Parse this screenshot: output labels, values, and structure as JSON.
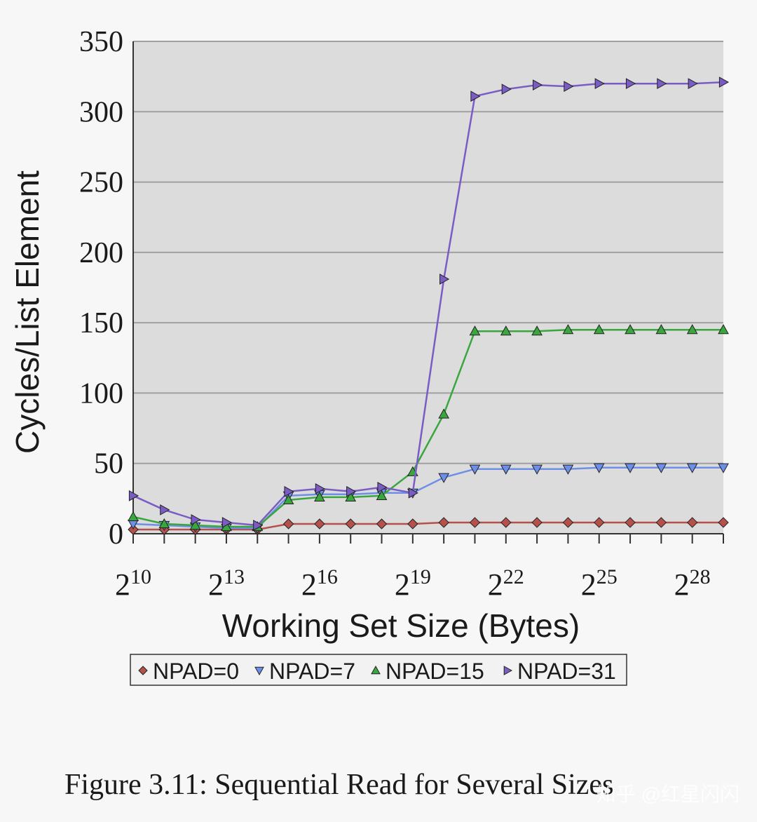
{
  "chart_data": {
    "type": "line",
    "xlabel": "Working Set Size (Bytes)",
    "ylabel": "Cycles/List Element",
    "ylim": [
      0,
      350
    ],
    "yticks": [
      0,
      50,
      100,
      150,
      200,
      250,
      300,
      350
    ],
    "x_exponents": [
      10,
      11,
      12,
      13,
      14,
      15,
      16,
      17,
      18,
      19,
      20,
      21,
      22,
      23,
      24,
      25,
      26,
      27,
      28,
      29
    ],
    "xtick_labels": [
      {
        "base": "2",
        "exp": "10",
        "at": 10
      },
      {
        "base": "2",
        "exp": "13",
        "at": 13
      },
      {
        "base": "2",
        "exp": "16",
        "at": 16
      },
      {
        "base": "2",
        "exp": "19",
        "at": 19
      },
      {
        "base": "2",
        "exp": "22",
        "at": 22
      },
      {
        "base": "2",
        "exp": "25",
        "at": 25
      },
      {
        "base": "2",
        "exp": "28",
        "at": 28
      }
    ],
    "grid": true,
    "legend_position": "bottom",
    "series": [
      {
        "name": "NPAD=0",
        "marker": "diamond",
        "color": "#b5504a",
        "values": [
          3,
          3,
          3,
          3,
          3,
          7,
          7,
          7,
          7,
          7,
          8,
          8,
          8,
          8,
          8,
          8,
          8,
          8,
          8,
          8
        ]
      },
      {
        "name": "NPAD=7",
        "marker": "triangle-down",
        "color": "#6e8fe8",
        "values": [
          7,
          6,
          5,
          4,
          4,
          27,
          28,
          28,
          29,
          29,
          40,
          46,
          46,
          46,
          46,
          47,
          47,
          47,
          47,
          47
        ]
      },
      {
        "name": "NPAD=15",
        "marker": "triangle-up",
        "color": "#3aa63e",
        "values": [
          12,
          7,
          6,
          5,
          5,
          24,
          26,
          26,
          27,
          44,
          85,
          144,
          144,
          144,
          145,
          145,
          145,
          145,
          145,
          145
        ]
      },
      {
        "name": "NPAD=31",
        "marker": "triangle-right",
        "color": "#7a5cc4",
        "values": [
          27,
          17,
          10,
          8,
          6,
          30,
          32,
          30,
          33,
          29,
          181,
          311,
          316,
          319,
          318,
          320,
          320,
          320,
          320,
          321
        ]
      }
    ],
    "caption": "Figure 3.11: Sequential Read for Several Sizes",
    "watermark": "知乎 @红星闪闪"
  }
}
